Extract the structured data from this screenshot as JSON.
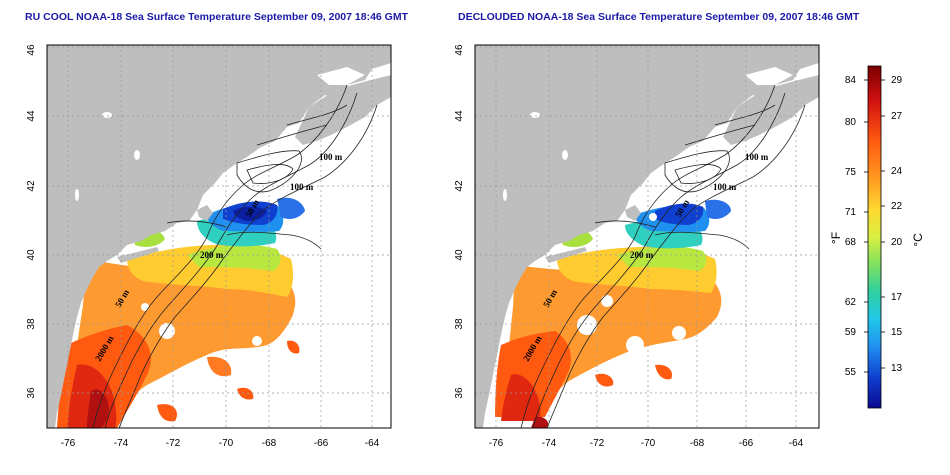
{
  "left_panel": {
    "title": "RU COOL NOAA-18 Sea Surface Temperature September 09, 2007 18:46 GMT",
    "contour_labels": [
      "100 m",
      "100 m",
      "200 m",
      "50 m",
      "50 m",
      "2000 m"
    ]
  },
  "right_panel": {
    "title": "DECLOUDED NOAA-18 Sea Surface Temperature September 09, 2007 18:46 GMT",
    "contour_labels": [
      "100 m",
      "100 m",
      "200 m",
      "50 m",
      "50 m",
      "2000 m"
    ]
  },
  "axes": {
    "x_ticks": [
      "-76",
      "-74",
      "-72",
      "-70",
      "-68",
      "-66",
      "-64"
    ],
    "y_ticks": [
      "36",
      "38",
      "40",
      "42",
      "44",
      "46"
    ],
    "xlim": [
      -77.1,
      -63.1
    ],
    "ylim": [
      35.1,
      46.0
    ]
  },
  "colorbar": {
    "fahrenheit_ticks": [
      "84",
      "80",
      "75",
      "71",
      "68",
      "62",
      "59",
      "55"
    ],
    "celsius_ticks": [
      "29",
      "27",
      "24",
      "22",
      "20",
      "17",
      "15",
      "13"
    ],
    "fahrenheit_unit": "°F",
    "celsius_unit": "°C",
    "colors": [
      "#7a0000",
      "#d01010",
      "#ff5a10",
      "#ff9a20",
      "#ffd830",
      "#d8f040",
      "#80e060",
      "#30d0a0",
      "#20c8e8",
      "#2090f0",
      "#1040d0",
      "#0a0a90"
    ]
  },
  "colors": {
    "land": "#bebebe",
    "ocean": "#ffffff",
    "contour": "#222222",
    "grid": "#999999",
    "title": "#1a1aa6"
  }
}
